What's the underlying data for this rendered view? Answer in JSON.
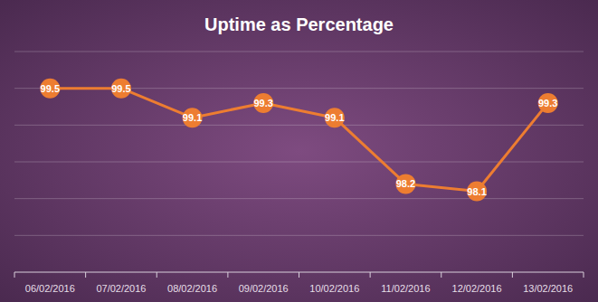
{
  "chart_data": {
    "type": "line",
    "title": "Uptime as Percentage",
    "categories": [
      "06/02/2016",
      "07/02/2016",
      "08/02/2016",
      "09/02/2016",
      "10/02/2016",
      "11/02/2016",
      "12/02/2016",
      "13/02/2016"
    ],
    "values": [
      99.5,
      99.5,
      99.1,
      99.3,
      99.1,
      98.2,
      98.1,
      99.3
    ],
    "color": "#ed7d31",
    "ylim": [
      97,
      100
    ],
    "yticks": [
      97,
      97.5,
      98,
      98.5,
      99,
      99.5,
      100
    ],
    "grid": true,
    "data_labels": true,
    "tick_labels": "x",
    "marker": "circle"
  }
}
